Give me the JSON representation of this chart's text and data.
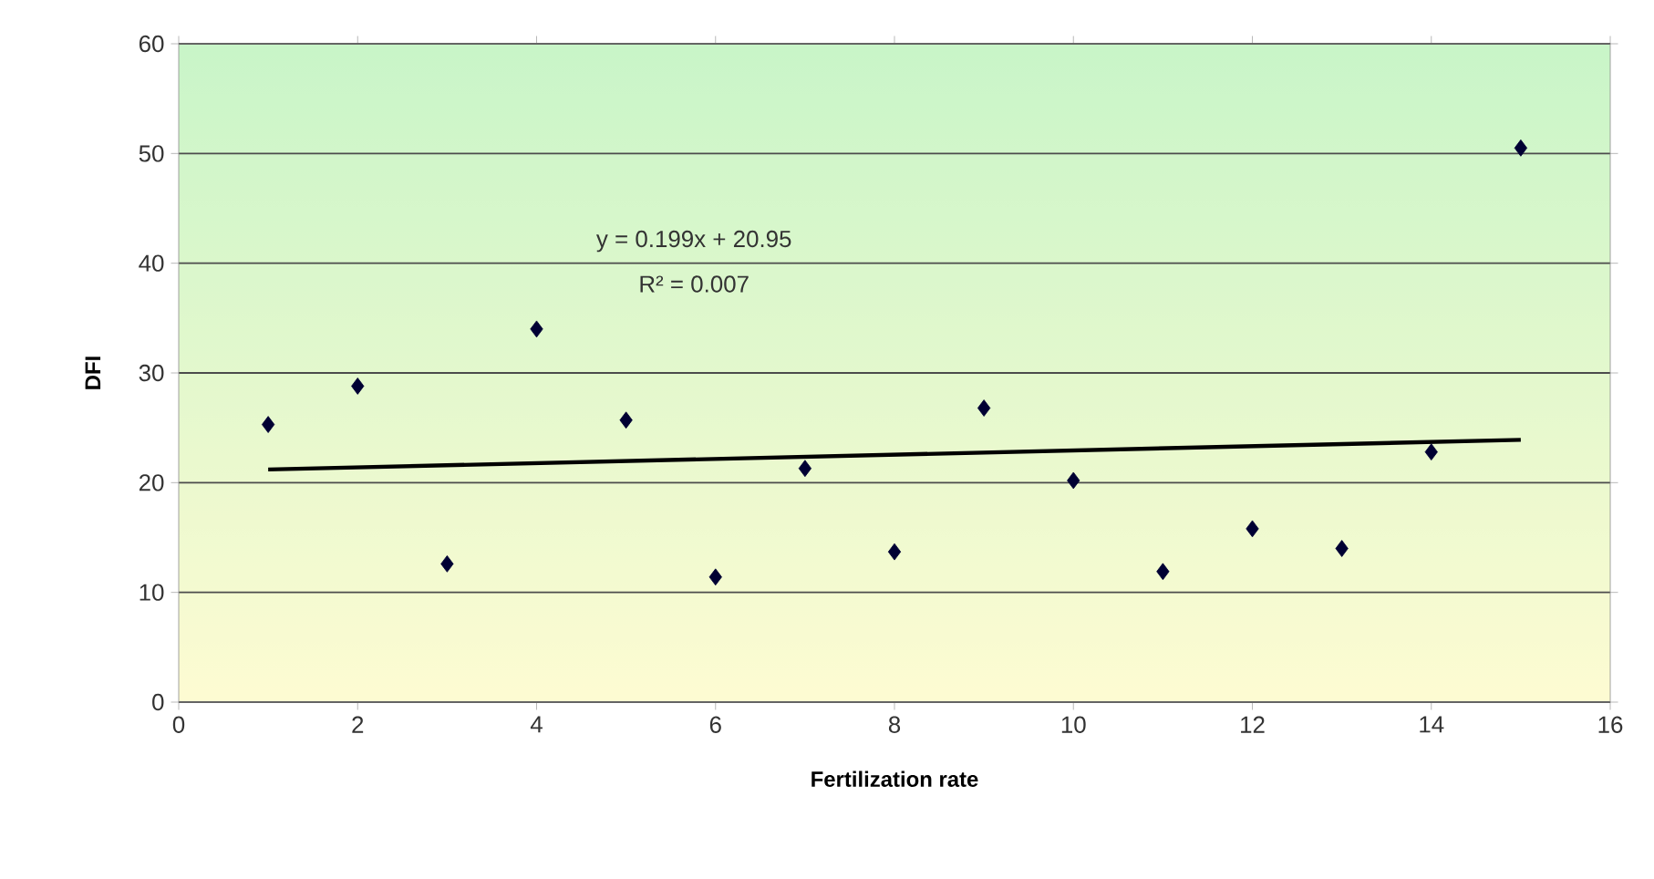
{
  "chart_data": {
    "type": "scatter",
    "xlabel": "Fertilization rate",
    "ylabel": "DFI",
    "xlim": [
      0,
      16
    ],
    "xticks": [
      0,
      2,
      4,
      6,
      8,
      10,
      12,
      14,
      16
    ],
    "ylim": [
      0,
      60
    ],
    "yticks": [
      0,
      10,
      20,
      30,
      40,
      50,
      60
    ],
    "grid": "y",
    "marker": "diamond",
    "series": [
      {
        "color": "#000033",
        "x": [
          1,
          2,
          3,
          4,
          5,
          6,
          7,
          8,
          9,
          10,
          11,
          12,
          13,
          14,
          15
        ],
        "values": [
          25.3,
          28.8,
          12.6,
          34.0,
          25.7,
          11.4,
          21.3,
          13.7,
          26.8,
          20.2,
          11.9,
          15.8,
          14.0,
          22.8,
          50.5
        ]
      },
      {
        "type": "line",
        "color": "#000000",
        "marker": "none",
        "x": [
          1,
          15
        ],
        "values": [
          21.2,
          23.9
        ]
      }
    ],
    "annotations": [
      "y = 0.199x + 20.95",
      "R² = 0.007"
    ]
  }
}
